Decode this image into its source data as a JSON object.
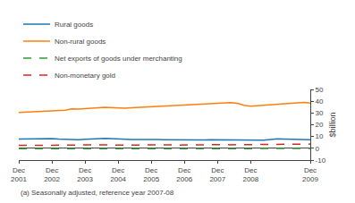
{
  "chart_data": {
    "type": "line",
    "ylabel": "$billion",
    "footnote": "(a) Seasonally adjusted, reference year 2007-08",
    "categories": [
      "Dec\n2001",
      null,
      null,
      null,
      null,
      "Dec\n2002",
      null,
      null,
      null,
      null,
      "Dec\n2003",
      null,
      null,
      null,
      null,
      "Dec\n2004",
      null,
      null,
      null,
      null,
      "Dec\n2005",
      null,
      null,
      null,
      null,
      "Dec\n2006",
      null,
      null,
      null,
      null,
      "Dec\n2007",
      null,
      null,
      null,
      null,
      "Dec\n2008",
      null,
      null,
      null,
      null,
      null,
      null,
      null,
      null,
      "Dec\n2009"
    ],
    "series": [
      {
        "name": "Rural goods",
        "line_style": "solid",
        "values": [
          7.8,
          7.9,
          8.0,
          8.1,
          8.2,
          8.3,
          7.8,
          7.5,
          7.4,
          7.3,
          7.6,
          7.8,
          8.5,
          8.4,
          8.2,
          7.8,
          7.5,
          7.4,
          7.5,
          7.6,
          7.5,
          7.4,
          7.3,
          7.2,
          7.3,
          7.2,
          7.1,
          7.0,
          7.1,
          7.2,
          7.1,
          7.0,
          6.9,
          7.0,
          7.0,
          6.9,
          6.8,
          6.9,
          7.5,
          8.0,
          7.8,
          7.6,
          7.5,
          7.4,
          7.3
        ]
      },
      {
        "name": "Non-rural goods",
        "line_style": "solid",
        "values": [
          30.5,
          30.8,
          31.0,
          30.9,
          31.5,
          31.8,
          32.0,
          32.4,
          33.5,
          33.2,
          33.6,
          33.8,
          34.5,
          34.8,
          34.6,
          34.2,
          34.0,
          34.5,
          34.8,
          35.2,
          35.5,
          35.8,
          35.6,
          36.0,
          36.3,
          36.5,
          36.8,
          37.2,
          37.5,
          37.8,
          38.0,
          38.5,
          38.8,
          38.2,
          36.5,
          35.8,
          36.2,
          36.8,
          37.5,
          37.8,
          38.2,
          38.5,
          38.8,
          39.0,
          38.5
        ]
      },
      {
        "name": "Net exports of goods under merchanting",
        "line_style": "dashed",
        "values": [
          -0.3,
          -0.3,
          -0.3,
          -0.3,
          -0.2,
          -0.2,
          -0.2,
          -0.2,
          -0.2,
          -0.2,
          -0.2,
          -0.2,
          -0.2,
          -0.2,
          -0.2,
          -0.2,
          -0.2,
          -0.2,
          -0.2,
          -0.2,
          -0.2,
          -0.2,
          -0.2,
          -0.2,
          -0.2,
          -0.2,
          -0.2,
          -0.2,
          -0.2,
          -0.2,
          -0.2,
          -0.2,
          -0.2,
          -0.2,
          -0.2,
          -0.2,
          -0.2,
          -0.2,
          -0.2,
          -0.2,
          -0.2,
          -0.2,
          -0.2,
          -0.2,
          -0.2
        ]
      },
      {
        "name": "Non-monetary gold",
        "line_style": "dashed",
        "values": [
          2.5,
          2.4,
          2.3,
          2.4,
          2.5,
          2.6,
          2.7,
          2.6,
          2.5,
          2.6,
          2.7,
          2.8,
          2.9,
          3.0,
          2.8,
          2.7,
          2.6,
          2.7,
          2.8,
          2.9,
          3.0,
          3.1,
          3.0,
          2.9,
          2.8,
          2.9,
          3.0,
          3.1,
          3.2,
          3.3,
          3.2,
          3.1,
          3.0,
          3.1,
          3.2,
          3.3,
          3.4,
          3.5,
          3.6,
          3.7,
          3.6,
          3.5,
          3.4,
          3.5,
          3.6
        ]
      }
    ],
    "ylim": [
      -10,
      50
    ],
    "yticks": [
      -10,
      0,
      10,
      20,
      30,
      40,
      50
    ],
    "grid": false,
    "legend": "top"
  }
}
